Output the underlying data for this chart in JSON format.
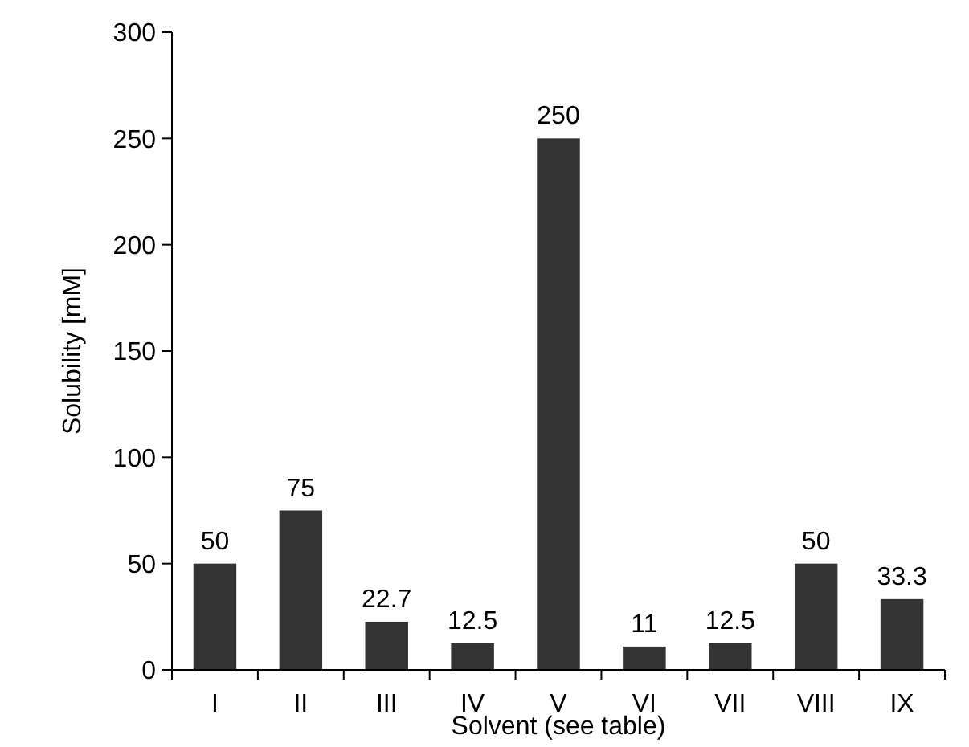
{
  "chart_data": {
    "type": "bar",
    "xlabel": "Solvent (see table)",
    "ylabel": "Solubility [mM]",
    "categories": [
      "I",
      "II",
      "III",
      "IV",
      "V",
      "VI",
      "VII",
      "VIII",
      "IX"
    ],
    "values": [
      50,
      75,
      22.7,
      12.5,
      250,
      11,
      12.5,
      50,
      33.3
    ],
    "color": "#333333",
    "ylim": [
      0,
      300
    ],
    "yticks": [
      0,
      50,
      100,
      150,
      200,
      250,
      300
    ],
    "data_labels": true
  }
}
